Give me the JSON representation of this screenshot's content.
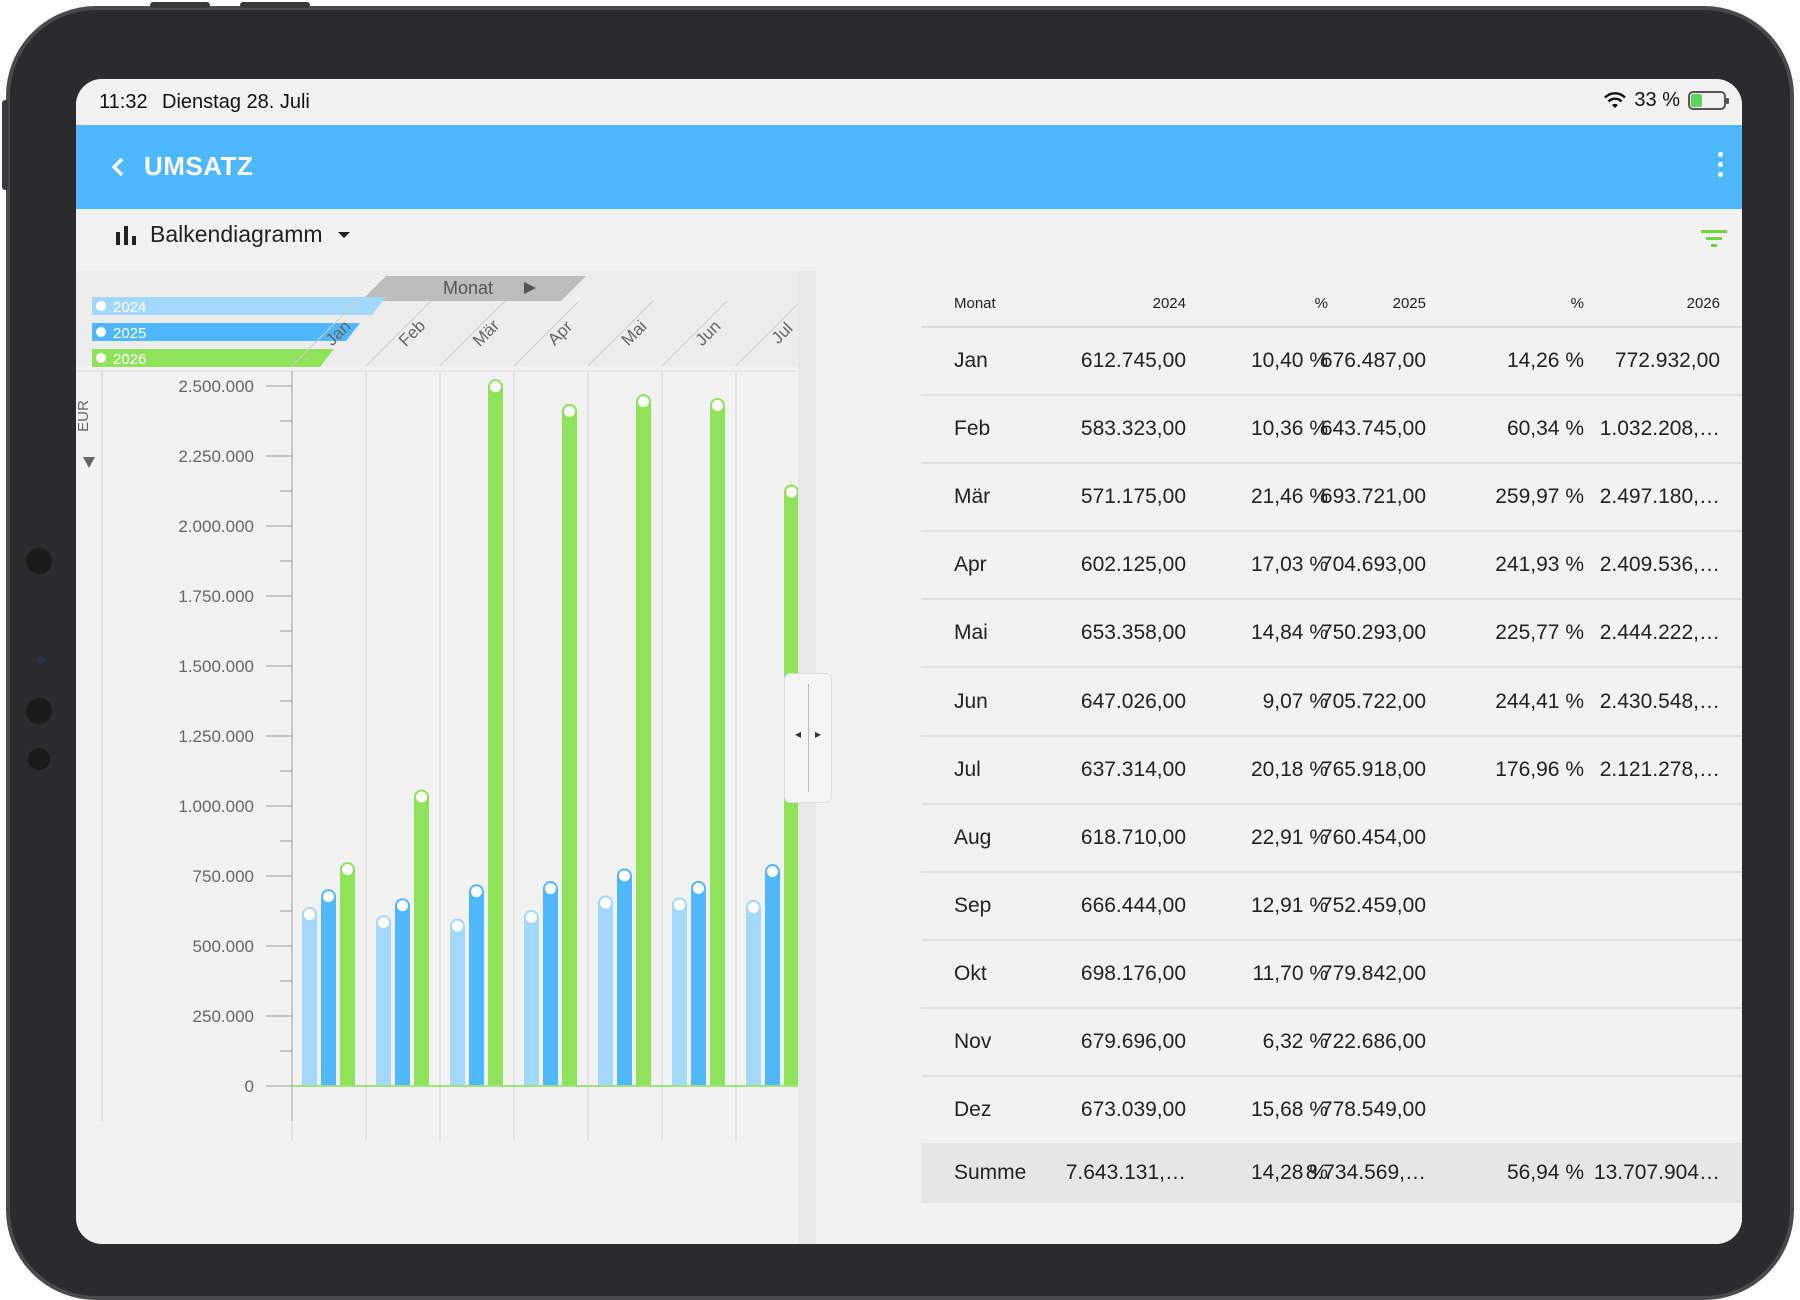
{
  "status_bar": {
    "time": "11:32",
    "date": "Dienstag 28. Juli",
    "battery_text": "33 %",
    "battery_level": 0.33
  },
  "app_bar": {
    "title": "UMSATZ",
    "back_icon": "chevron-left-icon",
    "more_icon": "more-vert-icon"
  },
  "toolbar": {
    "chart_type_label": "Balkendiagramm",
    "chart_type_icon": "bar-chart-icon",
    "filter_icon": "filter-icon"
  },
  "colors": {
    "accent": "#4fb8fd",
    "series_2024": "#a4d8fb",
    "series_2025": "#4fb8fd",
    "series_2026": "#8ee35a",
    "filter": "#6ed63a"
  },
  "chart_data": {
    "type": "bar",
    "dimension_label": "Monat",
    "ylabel": "EUR",
    "categories": [
      "Jan",
      "Feb",
      "Mär",
      "Apr",
      "Mai",
      "Jun",
      "Jul"
    ],
    "series": [
      {
        "name": "2024",
        "values": [
          612745,
          583323,
          571175,
          602125,
          653358,
          647026,
          637314
        ]
      },
      {
        "name": "2025",
        "values": [
          676487,
          643745,
          693721,
          704693,
          750293,
          705722,
          765918
        ]
      },
      {
        "name": "2026",
        "values": [
          772932,
          1032208,
          2497180,
          2409536,
          2444222,
          2430548,
          2121278
        ]
      }
    ],
    "ylim": [
      0,
      2500000
    ],
    "y_ticks": [
      "0",
      "250.000",
      "500.000",
      "750.000",
      "1.000.000",
      "1.250.000",
      "1.500.000",
      "1.750.000",
      "2.000.000",
      "2.250.000",
      "2.500.000"
    ],
    "legend_position": "top-left",
    "grid": false
  },
  "table": {
    "headers": [
      "Monat",
      "2024",
      "%",
      "2025",
      "%",
      "2026"
    ],
    "rows": [
      [
        "Jan",
        "612.745,00",
        "10,40 %",
        "676.487,00",
        "14,26 %",
        "772.932,00"
      ],
      [
        "Feb",
        "583.323,00",
        "10,36 %",
        "643.745,00",
        "60,34 %",
        "1.032.208,…"
      ],
      [
        "Mär",
        "571.175,00",
        "21,46 %",
        "693.721,00",
        "259,97 %",
        "2.497.180,…"
      ],
      [
        "Apr",
        "602.125,00",
        "17,03 %",
        "704.693,00",
        "241,93 %",
        "2.409.536,…"
      ],
      [
        "Mai",
        "653.358,00",
        "14,84 %",
        "750.293,00",
        "225,77 %",
        "2.444.222,…"
      ],
      [
        "Jun",
        "647.026,00",
        "9,07 %",
        "705.722,00",
        "244,41 %",
        "2.430.548,…"
      ],
      [
        "Jul",
        "637.314,00",
        "20,18 %",
        "765.918,00",
        "176,96 %",
        "2.121.278,…"
      ],
      [
        "Aug",
        "618.710,00",
        "22,91 %",
        "760.454,00",
        "",
        ""
      ],
      [
        "Sep",
        "666.444,00",
        "12,91 %",
        "752.459,00",
        "",
        ""
      ],
      [
        "Okt",
        "698.176,00",
        "11,70 %",
        "779.842,00",
        "",
        ""
      ],
      [
        "Nov",
        "679.696,00",
        "6,32 %",
        "722.686,00",
        "",
        ""
      ],
      [
        "Dez",
        "673.039,00",
        "15,68 %",
        "778.549,00",
        "",
        ""
      ]
    ],
    "footer": [
      "Summe",
      "7.643.131,…",
      "14,28 %",
      "8.734.569,…",
      "56,94 %",
      "13.707.904…"
    ]
  }
}
